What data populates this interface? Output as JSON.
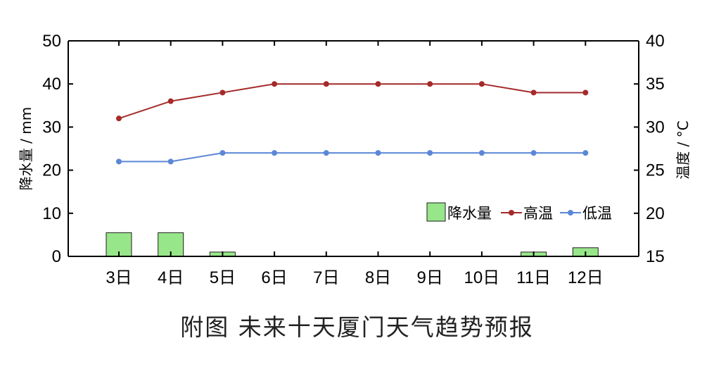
{
  "caption": "附图  未来十天厦门天气趋势预报",
  "colors": {
    "bar_fill": "#98e68a",
    "bar_stroke": "#1f1f1f",
    "high_line": "#a52a2a",
    "low_line": "#5b87d6",
    "axis": "#000000"
  },
  "chart_data": {
    "type": "bar+line",
    "categories": [
      "3日",
      "4日",
      "5日",
      "6日",
      "7日",
      "8日",
      "9日",
      "10日",
      "11日",
      "12日"
    ],
    "ylabel_left": "降水量 / mm",
    "ylabel_right": "温度 / °C",
    "ylim_left": [
      0,
      50
    ],
    "yticks_left": [
      0,
      10,
      20,
      30,
      40,
      50
    ],
    "ylim_right": [
      15,
      40
    ],
    "yticks_right": [
      15,
      20,
      25,
      30,
      35,
      40
    ],
    "grid": false,
    "legend_placement": "lower-right",
    "series": [
      {
        "name": "降水量",
        "kind": "bar",
        "axis": "left",
        "values": [
          5.5,
          5.5,
          1,
          0,
          0,
          0,
          0,
          0,
          1,
          2
        ]
      },
      {
        "name": "高温",
        "kind": "line",
        "axis": "right",
        "values": [
          31,
          33,
          34,
          35,
          35,
          35,
          35,
          35,
          34,
          34
        ]
      },
      {
        "name": "低温",
        "kind": "line",
        "axis": "right",
        "values": [
          26,
          26,
          27,
          27,
          27,
          27,
          27,
          27,
          27,
          27
        ]
      }
    ]
  }
}
